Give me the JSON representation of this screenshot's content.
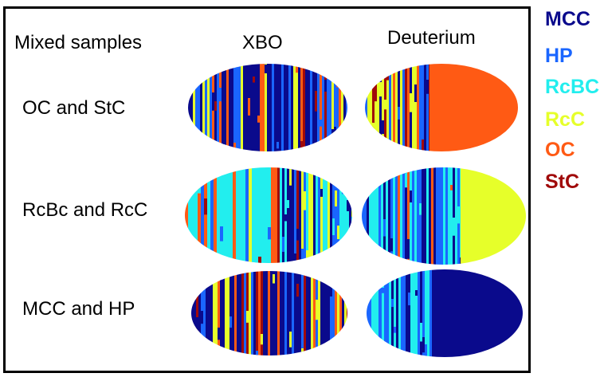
{
  "header": {
    "row_header": "Mixed samples",
    "columns": [
      "XBO",
      "Deuterium"
    ]
  },
  "rows": [
    "OC and StC",
    "RcBc and RcC",
    "MCC and HP"
  ],
  "legend": [
    {
      "label": "MCC",
      "color": "#0a0a8c"
    },
    {
      "label": "HP",
      "color": "#1a66ff"
    },
    {
      "label": "RcBC",
      "color": "#22eeee"
    },
    {
      "label": "RcC",
      "color": "#e6ff2a"
    },
    {
      "label": "OC",
      "color": "#ff5a14"
    },
    {
      "label": "StC",
      "color": "#a00a0a"
    }
  ]
}
